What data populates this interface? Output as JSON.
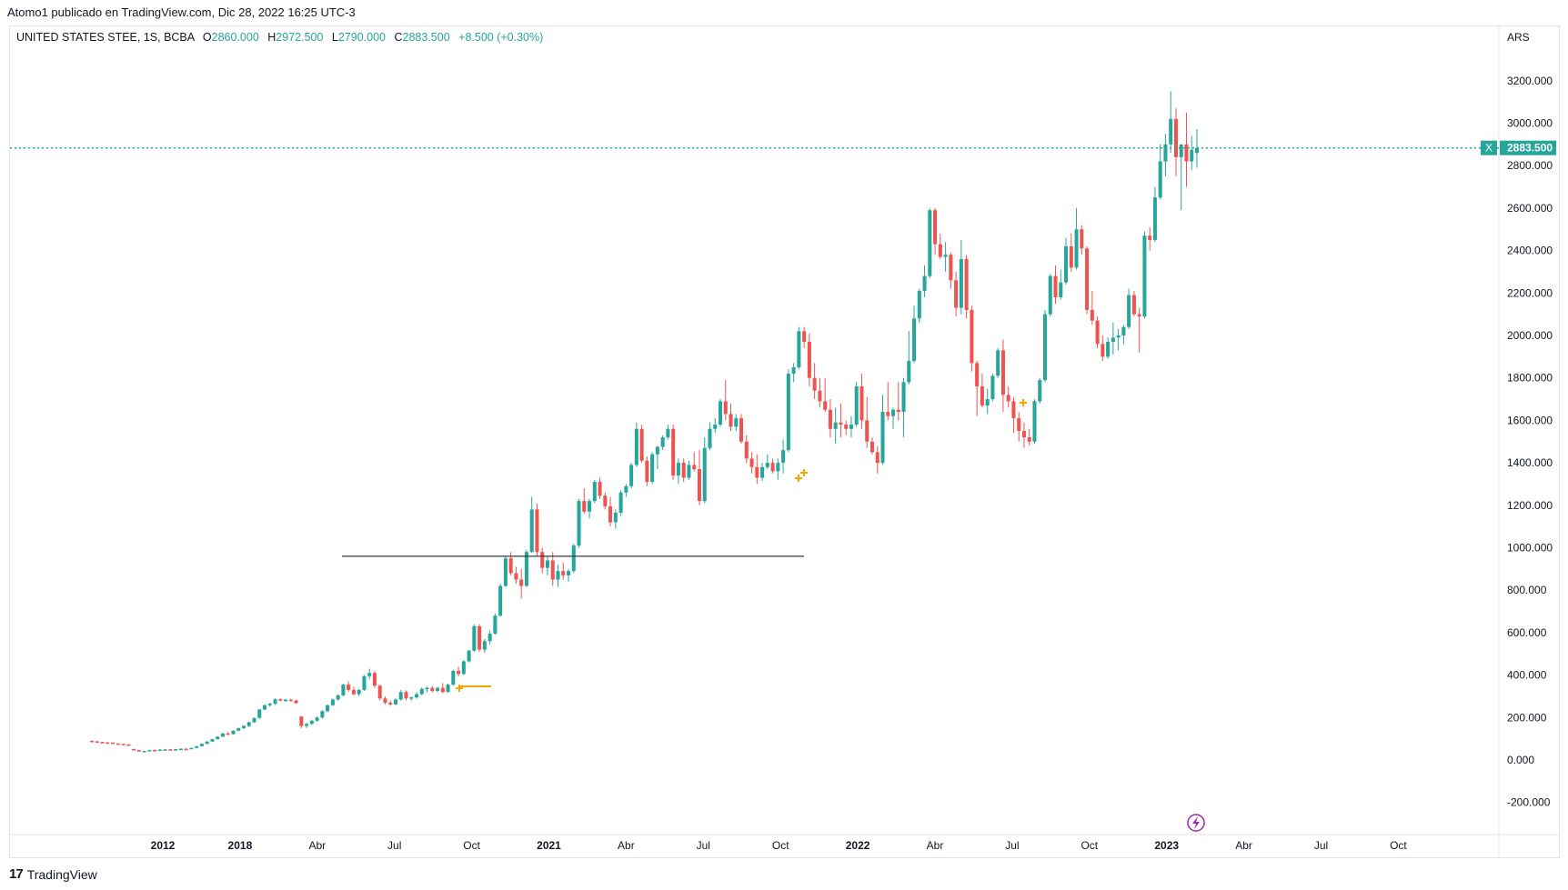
{
  "header": {
    "text": "Atomo1 publicado en TradingView.com, Dic 28, 2022 16:25 UTC-3"
  },
  "legend": {
    "symbol": "UNITED STATES STEE, 1S, BCBA",
    "open_label": "O",
    "open": "2860.000",
    "high_label": "H",
    "high": "2972.500",
    "low_label": "L",
    "low": "2790.000",
    "close_label": "C",
    "close": "2883.500",
    "change": "+8.500 (+0.30%)"
  },
  "footer": {
    "logo_icon": "tradingview-logo-icon",
    "brand": "TradingView"
  },
  "colors": {
    "up": "#26a69a",
    "down": "#ef5350",
    "grid": "#e0e3eb",
    "text": "#131722"
  },
  "chart_data": {
    "type": "candlestick",
    "currency": "ARS",
    "y_ticks": [
      "3200.000",
      "3000.000",
      "2800.000",
      "2600.000",
      "2400.000",
      "2200.000",
      "2000.000",
      "1800.000",
      "1600.000",
      "1400.000",
      "1200.000",
      "1000.000",
      "800.000",
      "600.000",
      "400.000",
      "200.000",
      "0.000",
      "-200.000"
    ],
    "ylim": [
      -300,
      3400
    ],
    "x_labels": [
      "2012",
      "2018",
      "Abr",
      "Jul",
      "Oct",
      "2021",
      "Abr",
      "Jul",
      "Oct",
      "2022",
      "Abr",
      "Jul",
      "Oct",
      "2023",
      "Abr",
      "Jul",
      "Oct"
    ],
    "bold_x_labels": [
      "2012",
      "2018",
      "2021",
      "2022",
      "2023"
    ],
    "last_price": "2883.500",
    "last_price_marker": "X",
    "horizontal_line": {
      "price": 960
    },
    "period": "1S",
    "candles": [
      [
        90,
        92,
        88,
        88
      ],
      [
        88,
        89,
        85,
        85
      ],
      [
        85,
        86,
        82,
        83
      ],
      [
        83,
        84,
        80,
        82
      ],
      [
        82,
        83,
        78,
        78
      ],
      [
        78,
        78,
        74,
        76
      ],
      [
        76,
        76,
        72,
        73
      ],
      [
        73,
        74,
        70,
        72
      ],
      [
        52,
        52,
        44,
        46
      ],
      [
        46,
        47,
        40,
        42
      ],
      [
        42,
        44,
        38,
        43
      ],
      [
        43,
        48,
        42,
        47
      ],
      [
        47,
        49,
        44,
        45
      ],
      [
        45,
        50,
        44,
        49
      ],
      [
        49,
        52,
        47,
        50
      ],
      [
        50,
        51,
        47,
        48
      ],
      [
        48,
        52,
        46,
        51
      ],
      [
        51,
        55,
        49,
        53
      ],
      [
        53,
        56,
        50,
        52
      ],
      [
        52,
        58,
        51,
        57
      ],
      [
        57,
        66,
        55,
        65
      ],
      [
        65,
        78,
        63,
        76
      ],
      [
        76,
        88,
        74,
        87
      ],
      [
        87,
        100,
        85,
        98
      ],
      [
        98,
        112,
        96,
        110
      ],
      [
        110,
        128,
        108,
        125
      ],
      [
        125,
        132,
        118,
        122
      ],
      [
        122,
        140,
        120,
        138
      ],
      [
        138,
        152,
        135,
        150
      ],
      [
        150,
        165,
        146,
        160
      ],
      [
        160,
        180,
        155,
        178
      ],
      [
        178,
        200,
        175,
        198
      ],
      [
        198,
        240,
        195,
        238
      ],
      [
        238,
        262,
        235,
        258
      ],
      [
        258,
        270,
        252,
        265
      ],
      [
        265,
        290,
        260,
        286
      ],
      [
        286,
        290,
        276,
        280
      ],
      [
        280,
        288,
        274,
        284
      ],
      [
        284,
        290,
        276,
        280
      ],
      [
        280,
        284,
        264,
        268
      ],
      [
        205,
        208,
        150,
        160
      ],
      [
        160,
        175,
        150,
        170
      ],
      [
        170,
        190,
        165,
        185
      ],
      [
        185,
        205,
        180,
        200
      ],
      [
        200,
        235,
        195,
        230
      ],
      [
        230,
        262,
        225,
        258
      ],
      [
        258,
        290,
        255,
        285
      ],
      [
        285,
        310,
        280,
        305
      ],
      [
        305,
        360,
        300,
        355
      ],
      [
        355,
        370,
        320,
        330
      ],
      [
        330,
        345,
        305,
        310
      ],
      [
        310,
        335,
        300,
        330
      ],
      [
        330,
        400,
        325,
        395
      ],
      [
        395,
        430,
        380,
        410
      ],
      [
        410,
        420,
        340,
        350
      ],
      [
        350,
        355,
        280,
        290
      ],
      [
        290,
        300,
        262,
        270
      ],
      [
        270,
        280,
        255,
        262
      ],
      [
        262,
        290,
        258,
        285
      ],
      [
        285,
        330,
        280,
        320
      ],
      [
        320,
        328,
        282,
        290
      ],
      [
        290,
        300,
        280,
        295
      ],
      [
        295,
        320,
        288,
        310
      ],
      [
        310,
        342,
        305,
        335
      ],
      [
        335,
        345,
        320,
        340
      ],
      [
        340,
        350,
        318,
        325
      ],
      [
        325,
        345,
        320,
        340
      ],
      [
        340,
        362,
        315,
        320
      ],
      [
        320,
        360,
        318,
        355
      ],
      [
        355,
        425,
        350,
        420
      ],
      [
        420,
        440,
        395,
        405
      ],
      [
        405,
        470,
        400,
        465
      ],
      [
        465,
        520,
        460,
        515
      ],
      [
        515,
        640,
        510,
        630
      ],
      [
        630,
        640,
        510,
        520
      ],
      [
        520,
        570,
        505,
        560
      ],
      [
        560,
        610,
        545,
        595
      ],
      [
        595,
        690,
        590,
        680
      ],
      [
        680,
        830,
        675,
        820
      ],
      [
        820,
        960,
        815,
        950
      ],
      [
        950,
        980,
        870,
        880
      ],
      [
        880,
        910,
        830,
        850
      ],
      [
        850,
        900,
        760,
        820
      ],
      [
        820,
        990,
        815,
        980
      ],
      [
        980,
        1240,
        975,
        1180
      ],
      [
        1180,
        1210,
        960,
        980
      ],
      [
        980,
        1000,
        880,
        905
      ],
      [
        905,
        960,
        870,
        940
      ],
      [
        940,
        980,
        820,
        850
      ],
      [
        850,
        920,
        815,
        890
      ],
      [
        890,
        930,
        850,
        870
      ],
      [
        870,
        900,
        840,
        890
      ],
      [
        890,
        1020,
        880,
        1010
      ],
      [
        1010,
        1230,
        1000,
        1220
      ],
      [
        1220,
        1280,
        1160,
        1170
      ],
      [
        1170,
        1230,
        1140,
        1220
      ],
      [
        1220,
        1320,
        1210,
        1310
      ],
      [
        1310,
        1330,
        1230,
        1245
      ],
      [
        1245,
        1260,
        1180,
        1195
      ],
      [
        1195,
        1240,
        1100,
        1120
      ],
      [
        1120,
        1180,
        1090,
        1165
      ],
      [
        1165,
        1270,
        1150,
        1260
      ],
      [
        1260,
        1300,
        1240,
        1290
      ],
      [
        1290,
        1400,
        1280,
        1390
      ],
      [
        1390,
        1590,
        1380,
        1560
      ],
      [
        1560,
        1580,
        1400,
        1410
      ],
      [
        1410,
        1430,
        1290,
        1310
      ],
      [
        1310,
        1450,
        1300,
        1440
      ],
      [
        1440,
        1480,
        1370,
        1475
      ],
      [
        1475,
        1530,
        1460,
        1520
      ],
      [
        1520,
        1580,
        1510,
        1560
      ],
      [
        1560,
        1580,
        1320,
        1340
      ],
      [
        1340,
        1420,
        1300,
        1400
      ],
      [
        1400,
        1420,
        1310,
        1330
      ],
      [
        1330,
        1410,
        1320,
        1390
      ],
      [
        1390,
        1450,
        1360,
        1370
      ],
      [
        1370,
        1460,
        1200,
        1220
      ],
      [
        1220,
        1520,
        1210,
        1470
      ],
      [
        1470,
        1590,
        1460,
        1560
      ],
      [
        1560,
        1610,
        1540,
        1580
      ],
      [
        1580,
        1700,
        1570,
        1690
      ],
      [
        1690,
        1790,
        1600,
        1630
      ],
      [
        1630,
        1680,
        1550,
        1570
      ],
      [
        1570,
        1630,
        1550,
        1610
      ],
      [
        1610,
        1630,
        1490,
        1500
      ],
      [
        1500,
        1530,
        1400,
        1420
      ],
      [
        1420,
        1450,
        1350,
        1380
      ],
      [
        1380,
        1440,
        1300,
        1330
      ],
      [
        1330,
        1400,
        1315,
        1380
      ],
      [
        1380,
        1440,
        1370,
        1400
      ],
      [
        1400,
        1420,
        1350,
        1360
      ],
      [
        1360,
        1420,
        1320,
        1400
      ],
      [
        1400,
        1510,
        1350,
        1460
      ],
      [
        1460,
        1840,
        1450,
        1820
      ],
      [
        1820,
        1870,
        1780,
        1850
      ],
      [
        1850,
        2040,
        1840,
        2020
      ],
      [
        2020,
        2040,
        1940,
        1970
      ],
      [
        1970,
        2010,
        1760,
        1800
      ],
      [
        1800,
        1870,
        1700,
        1740
      ],
      [
        1740,
        1800,
        1660,
        1690
      ],
      [
        1690,
        1800,
        1640,
        1650
      ],
      [
        1650,
        1700,
        1520,
        1560
      ],
      [
        1560,
        1660,
        1490,
        1590
      ],
      [
        1590,
        1680,
        1520,
        1580
      ],
      [
        1580,
        1600,
        1530,
        1560
      ],
      [
        1560,
        1620,
        1520,
        1580
      ],
      [
        1580,
        1780,
        1570,
        1760
      ],
      [
        1760,
        1820,
        1560,
        1600
      ],
      [
        1600,
        1710,
        1470,
        1500
      ],
      [
        1500,
        1520,
        1440,
        1450
      ],
      [
        1450,
        1480,
        1350,
        1400
      ],
      [
        1400,
        1720,
        1390,
        1640
      ],
      [
        1640,
        1780,
        1600,
        1620
      ],
      [
        1620,
        1660,
        1560,
        1650
      ],
      [
        1650,
        1780,
        1600,
        1640
      ],
      [
        1640,
        1800,
        1520,
        1780
      ],
      [
        1780,
        2020,
        1770,
        1880
      ],
      [
        1880,
        2140,
        1870,
        2080
      ],
      [
        2080,
        2220,
        2060,
        2210
      ],
      [
        2210,
        2330,
        2180,
        2280
      ],
      [
        2280,
        2600,
        2270,
        2590
      ],
      [
        2590,
        2600,
        2380,
        2430
      ],
      [
        2430,
        2480,
        2360,
        2370
      ],
      [
        2370,
        2440,
        2300,
        2380
      ],
      [
        2380,
        2390,
        2220,
        2260
      ],
      [
        2260,
        2300,
        2090,
        2130
      ],
      [
        2130,
        2450,
        2100,
        2360
      ],
      [
        2360,
        2380,
        2080,
        2120
      ],
      [
        2120,
        2140,
        1830,
        1870
      ],
      [
        1870,
        1880,
        1620,
        1760
      ],
      [
        1760,
        1820,
        1660,
        1670
      ],
      [
        1670,
        1750,
        1630,
        1700
      ],
      [
        1700,
        1820,
        1690,
        1810
      ],
      [
        1810,
        1940,
        1800,
        1930
      ],
      [
        1930,
        1980,
        1640,
        1720
      ],
      [
        1720,
        1760,
        1660,
        1690
      ],
      [
        1690,
        1710,
        1540,
        1610
      ],
      [
        1610,
        1640,
        1500,
        1550
      ],
      [
        1550,
        1590,
        1470,
        1520
      ],
      [
        1520,
        1560,
        1480,
        1500
      ],
      [
        1500,
        1700,
        1490,
        1690
      ],
      [
        1690,
        1800,
        1680,
        1790
      ],
      [
        1790,
        2120,
        1780,
        2100
      ],
      [
        2100,
        2290,
        2090,
        2280
      ],
      [
        2280,
        2330,
        2150,
        2180
      ],
      [
        2180,
        2310,
        2170,
        2250
      ],
      [
        2250,
        2460,
        2240,
        2420
      ],
      [
        2420,
        2480,
        2300,
        2320
      ],
      [
        2320,
        2600,
        2310,
        2500
      ],
      [
        2500,
        2520,
        2380,
        2410
      ],
      [
        2410,
        2420,
        2100,
        2120
      ],
      [
        2120,
        2210,
        2050,
        2070
      ],
      [
        2070,
        2090,
        1940,
        1960
      ],
      [
        1960,
        2000,
        1880,
        1900
      ],
      [
        1900,
        1990,
        1890,
        1970
      ],
      [
        1970,
        2060,
        1910,
        1990
      ],
      [
        1990,
        2030,
        1930,
        2000
      ],
      [
        2000,
        2050,
        1960,
        2040
      ],
      [
        2040,
        2220,
        2030,
        2190
      ],
      [
        2190,
        2210,
        2090,
        2100
      ],
      [
        2100,
        2130,
        1920,
        2090
      ],
      [
        2090,
        2490,
        2080,
        2470
      ],
      [
        2470,
        2510,
        2400,
        2450
      ],
      [
        2450,
        2700,
        2440,
        2650
      ],
      [
        2650,
        2900,
        2640,
        2820
      ],
      [
        2820,
        2950,
        2750,
        2900
      ],
      [
        2900,
        3150,
        2860,
        3020
      ],
      [
        3020,
        3070,
        2750,
        2840
      ],
      [
        2840,
        2870,
        2590,
        2900
      ],
      [
        2900,
        3050,
        2700,
        2820
      ],
      [
        2820,
        2940,
        2780,
        2875
      ],
      [
        2860,
        2972.5,
        2790,
        2883.5
      ]
    ]
  }
}
